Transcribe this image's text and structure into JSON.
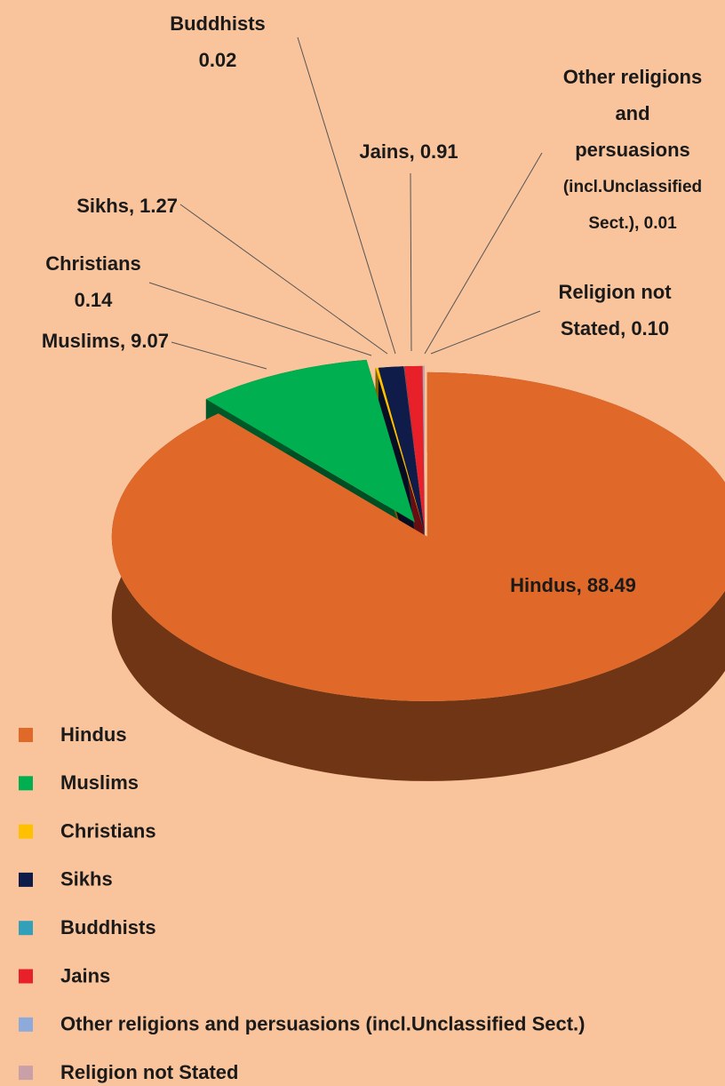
{
  "chart_data": {
    "type": "pie3d",
    "categories": [
      "Hindus",
      "Muslims",
      "Christians",
      "Sikhs",
      "Buddhists",
      "Jains",
      "Other religions and persuasions (incl.Unclassified Sect.)",
      "Religion not Stated"
    ],
    "values": [
      88.49,
      9.07,
      0.14,
      1.27,
      0.02,
      0.91,
      0.01,
      0.1
    ],
    "value_labels": [
      [
        "Hindus, 88.49"
      ],
      [
        "Muslims, 9.07"
      ],
      [
        "Christians",
        "0.14"
      ],
      [
        "Sikhs, 1.27"
      ],
      [
        "Buddhists",
        "0.02"
      ],
      [
        "Jains, 0.91"
      ],
      [
        "Other religions",
        "and",
        "persuasions",
        "(incl.Unclassified",
        "Sect.), 0.01"
      ],
      [
        "Religion not",
        "Stated, 0.10"
      ]
    ],
    "colors": [
      "#e0692a",
      "#00b050",
      "#ffc000",
      "#0f1b48",
      "#31a0b8",
      "#e8202a",
      "#8eaadb",
      "#c9a0a8"
    ],
    "legend": "bottom-left"
  }
}
